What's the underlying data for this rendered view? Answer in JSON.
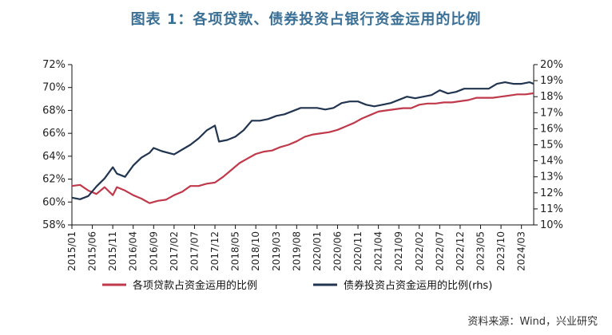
{
  "title": "图表 1：各项贷款、债券投资占银行资金运用的比例",
  "source": "资料来源：Wind，兴业研究",
  "colors": {
    "title": "#3a6f96",
    "loan": "#c0394b",
    "bond": "#213450",
    "axis": "#111111"
  },
  "chart_data": {
    "type": "line",
    "xlabel": "",
    "ylabel": "",
    "ylim": [
      58,
      72
    ],
    "y2lim": [
      10,
      20
    ],
    "yticks": [
      "58%",
      "60%",
      "62%",
      "64%",
      "66%",
      "68%",
      "70%",
      "72%"
    ],
    "y2ticks": [
      "10%",
      "11%",
      "12%",
      "13%",
      "14%",
      "15%",
      "16%",
      "17%",
      "18%",
      "19%",
      "20%"
    ],
    "grid": false,
    "legend_position": "bottom",
    "x_tick_labels": [
      "2015/01",
      "2015/06",
      "2015/11",
      "2016/04",
      "2016/09",
      "2017/02",
      "2017/07",
      "2017/12",
      "2018/05",
      "2018/10",
      "2019/03",
      "2019/08",
      "2020/01",
      "2020/06",
      "2020/11",
      "2021/04",
      "2021/09",
      "2022/02",
      "2022/07",
      "2022/12",
      "2023/05",
      "2023/10",
      "2024/03"
    ],
    "series": [
      {
        "name": "各项贷款占资金运用的比例",
        "axis": "left",
        "points": [
          [
            "2015/01",
            61.4
          ],
          [
            "2015/03",
            61.5
          ],
          [
            "2015/05",
            61.0
          ],
          [
            "2015/07",
            60.7
          ],
          [
            "2015/09",
            61.3
          ],
          [
            "2015/11",
            60.6
          ],
          [
            "2015/12",
            61.3
          ],
          [
            "2016/02",
            61.0
          ],
          [
            "2016/04",
            60.6
          ],
          [
            "2016/06",
            60.3
          ],
          [
            "2016/08",
            59.9
          ],
          [
            "2016/10",
            60.1
          ],
          [
            "2016/12",
            60.2
          ],
          [
            "2017/02",
            60.6
          ],
          [
            "2017/04",
            60.9
          ],
          [
            "2017/06",
            61.4
          ],
          [
            "2017/08",
            61.4
          ],
          [
            "2017/10",
            61.6
          ],
          [
            "2017/12",
            61.7
          ],
          [
            "2018/02",
            62.2
          ],
          [
            "2018/04",
            62.8
          ],
          [
            "2018/06",
            63.4
          ],
          [
            "2018/08",
            63.8
          ],
          [
            "2018/10",
            64.2
          ],
          [
            "2018/12",
            64.4
          ],
          [
            "2019/02",
            64.5
          ],
          [
            "2019/04",
            64.8
          ],
          [
            "2019/06",
            65.0
          ],
          [
            "2019/08",
            65.3
          ],
          [
            "2019/10",
            65.7
          ],
          [
            "2019/12",
            65.9
          ],
          [
            "2020/02",
            66.0
          ],
          [
            "2020/04",
            66.1
          ],
          [
            "2020/06",
            66.3
          ],
          [
            "2020/08",
            66.6
          ],
          [
            "2020/10",
            66.9
          ],
          [
            "2020/12",
            67.3
          ],
          [
            "2021/02",
            67.6
          ],
          [
            "2021/04",
            67.9
          ],
          [
            "2021/06",
            68.0
          ],
          [
            "2021/08",
            68.1
          ],
          [
            "2021/10",
            68.2
          ],
          [
            "2021/12",
            68.2
          ],
          [
            "2022/02",
            68.5
          ],
          [
            "2022/04",
            68.6
          ],
          [
            "2022/06",
            68.6
          ],
          [
            "2022/08",
            68.7
          ],
          [
            "2022/10",
            68.7
          ],
          [
            "2022/12",
            68.8
          ],
          [
            "2023/02",
            68.9
          ],
          [
            "2023/04",
            69.1
          ],
          [
            "2023/06",
            69.1
          ],
          [
            "2023/08",
            69.1
          ],
          [
            "2023/10",
            69.2
          ],
          [
            "2023/12",
            69.3
          ],
          [
            "2024/02",
            69.4
          ],
          [
            "2024/04",
            69.4
          ],
          [
            "2024/06",
            69.5
          ]
        ]
      },
      {
        "name": "债券投资占资金运用的比例(rhs)",
        "axis": "right",
        "points": [
          [
            "2015/01",
            11.7
          ],
          [
            "2015/03",
            11.6
          ],
          [
            "2015/05",
            11.8
          ],
          [
            "2015/07",
            12.4
          ],
          [
            "2015/09",
            12.9
          ],
          [
            "2015/11",
            13.6
          ],
          [
            "2015/12",
            13.2
          ],
          [
            "2016/02",
            13.0
          ],
          [
            "2016/04",
            13.7
          ],
          [
            "2016/06",
            14.2
          ],
          [
            "2016/08",
            14.5
          ],
          [
            "2016/09",
            14.8
          ],
          [
            "2016/11",
            14.6
          ],
          [
            "2017/02",
            14.4
          ],
          [
            "2017/04",
            14.7
          ],
          [
            "2017/06",
            15.0
          ],
          [
            "2017/08",
            15.4
          ],
          [
            "2017/10",
            15.9
          ],
          [
            "2017/12",
            16.2
          ],
          [
            "2018/01",
            15.2
          ],
          [
            "2018/03",
            15.3
          ],
          [
            "2018/05",
            15.5
          ],
          [
            "2018/07",
            15.9
          ],
          [
            "2018/09",
            16.5
          ],
          [
            "2018/11",
            16.5
          ],
          [
            "2019/01",
            16.6
          ],
          [
            "2019/03",
            16.8
          ],
          [
            "2019/05",
            16.9
          ],
          [
            "2019/07",
            17.1
          ],
          [
            "2019/09",
            17.3
          ],
          [
            "2019/11",
            17.3
          ],
          [
            "2020/01",
            17.3
          ],
          [
            "2020/03",
            17.2
          ],
          [
            "2020/05",
            17.3
          ],
          [
            "2020/07",
            17.6
          ],
          [
            "2020/09",
            17.7
          ],
          [
            "2020/11",
            17.7
          ],
          [
            "2021/01",
            17.5
          ],
          [
            "2021/03",
            17.4
          ],
          [
            "2021/05",
            17.5
          ],
          [
            "2021/07",
            17.6
          ],
          [
            "2021/09",
            17.8
          ],
          [
            "2021/11",
            18.0
          ],
          [
            "2022/01",
            17.9
          ],
          [
            "2022/03",
            18.0
          ],
          [
            "2022/05",
            18.1
          ],
          [
            "2022/07",
            18.4
          ],
          [
            "2022/09",
            18.2
          ],
          [
            "2022/11",
            18.3
          ],
          [
            "2023/01",
            18.5
          ],
          [
            "2023/03",
            18.5
          ],
          [
            "2023/05",
            18.5
          ],
          [
            "2023/07",
            18.5
          ],
          [
            "2023/09",
            18.8
          ],
          [
            "2023/11",
            18.9
          ],
          [
            "2024/01",
            18.8
          ],
          [
            "2024/03",
            18.8
          ],
          [
            "2024/05",
            18.9
          ],
          [
            "2024/06",
            18.8
          ]
        ]
      }
    ]
  }
}
